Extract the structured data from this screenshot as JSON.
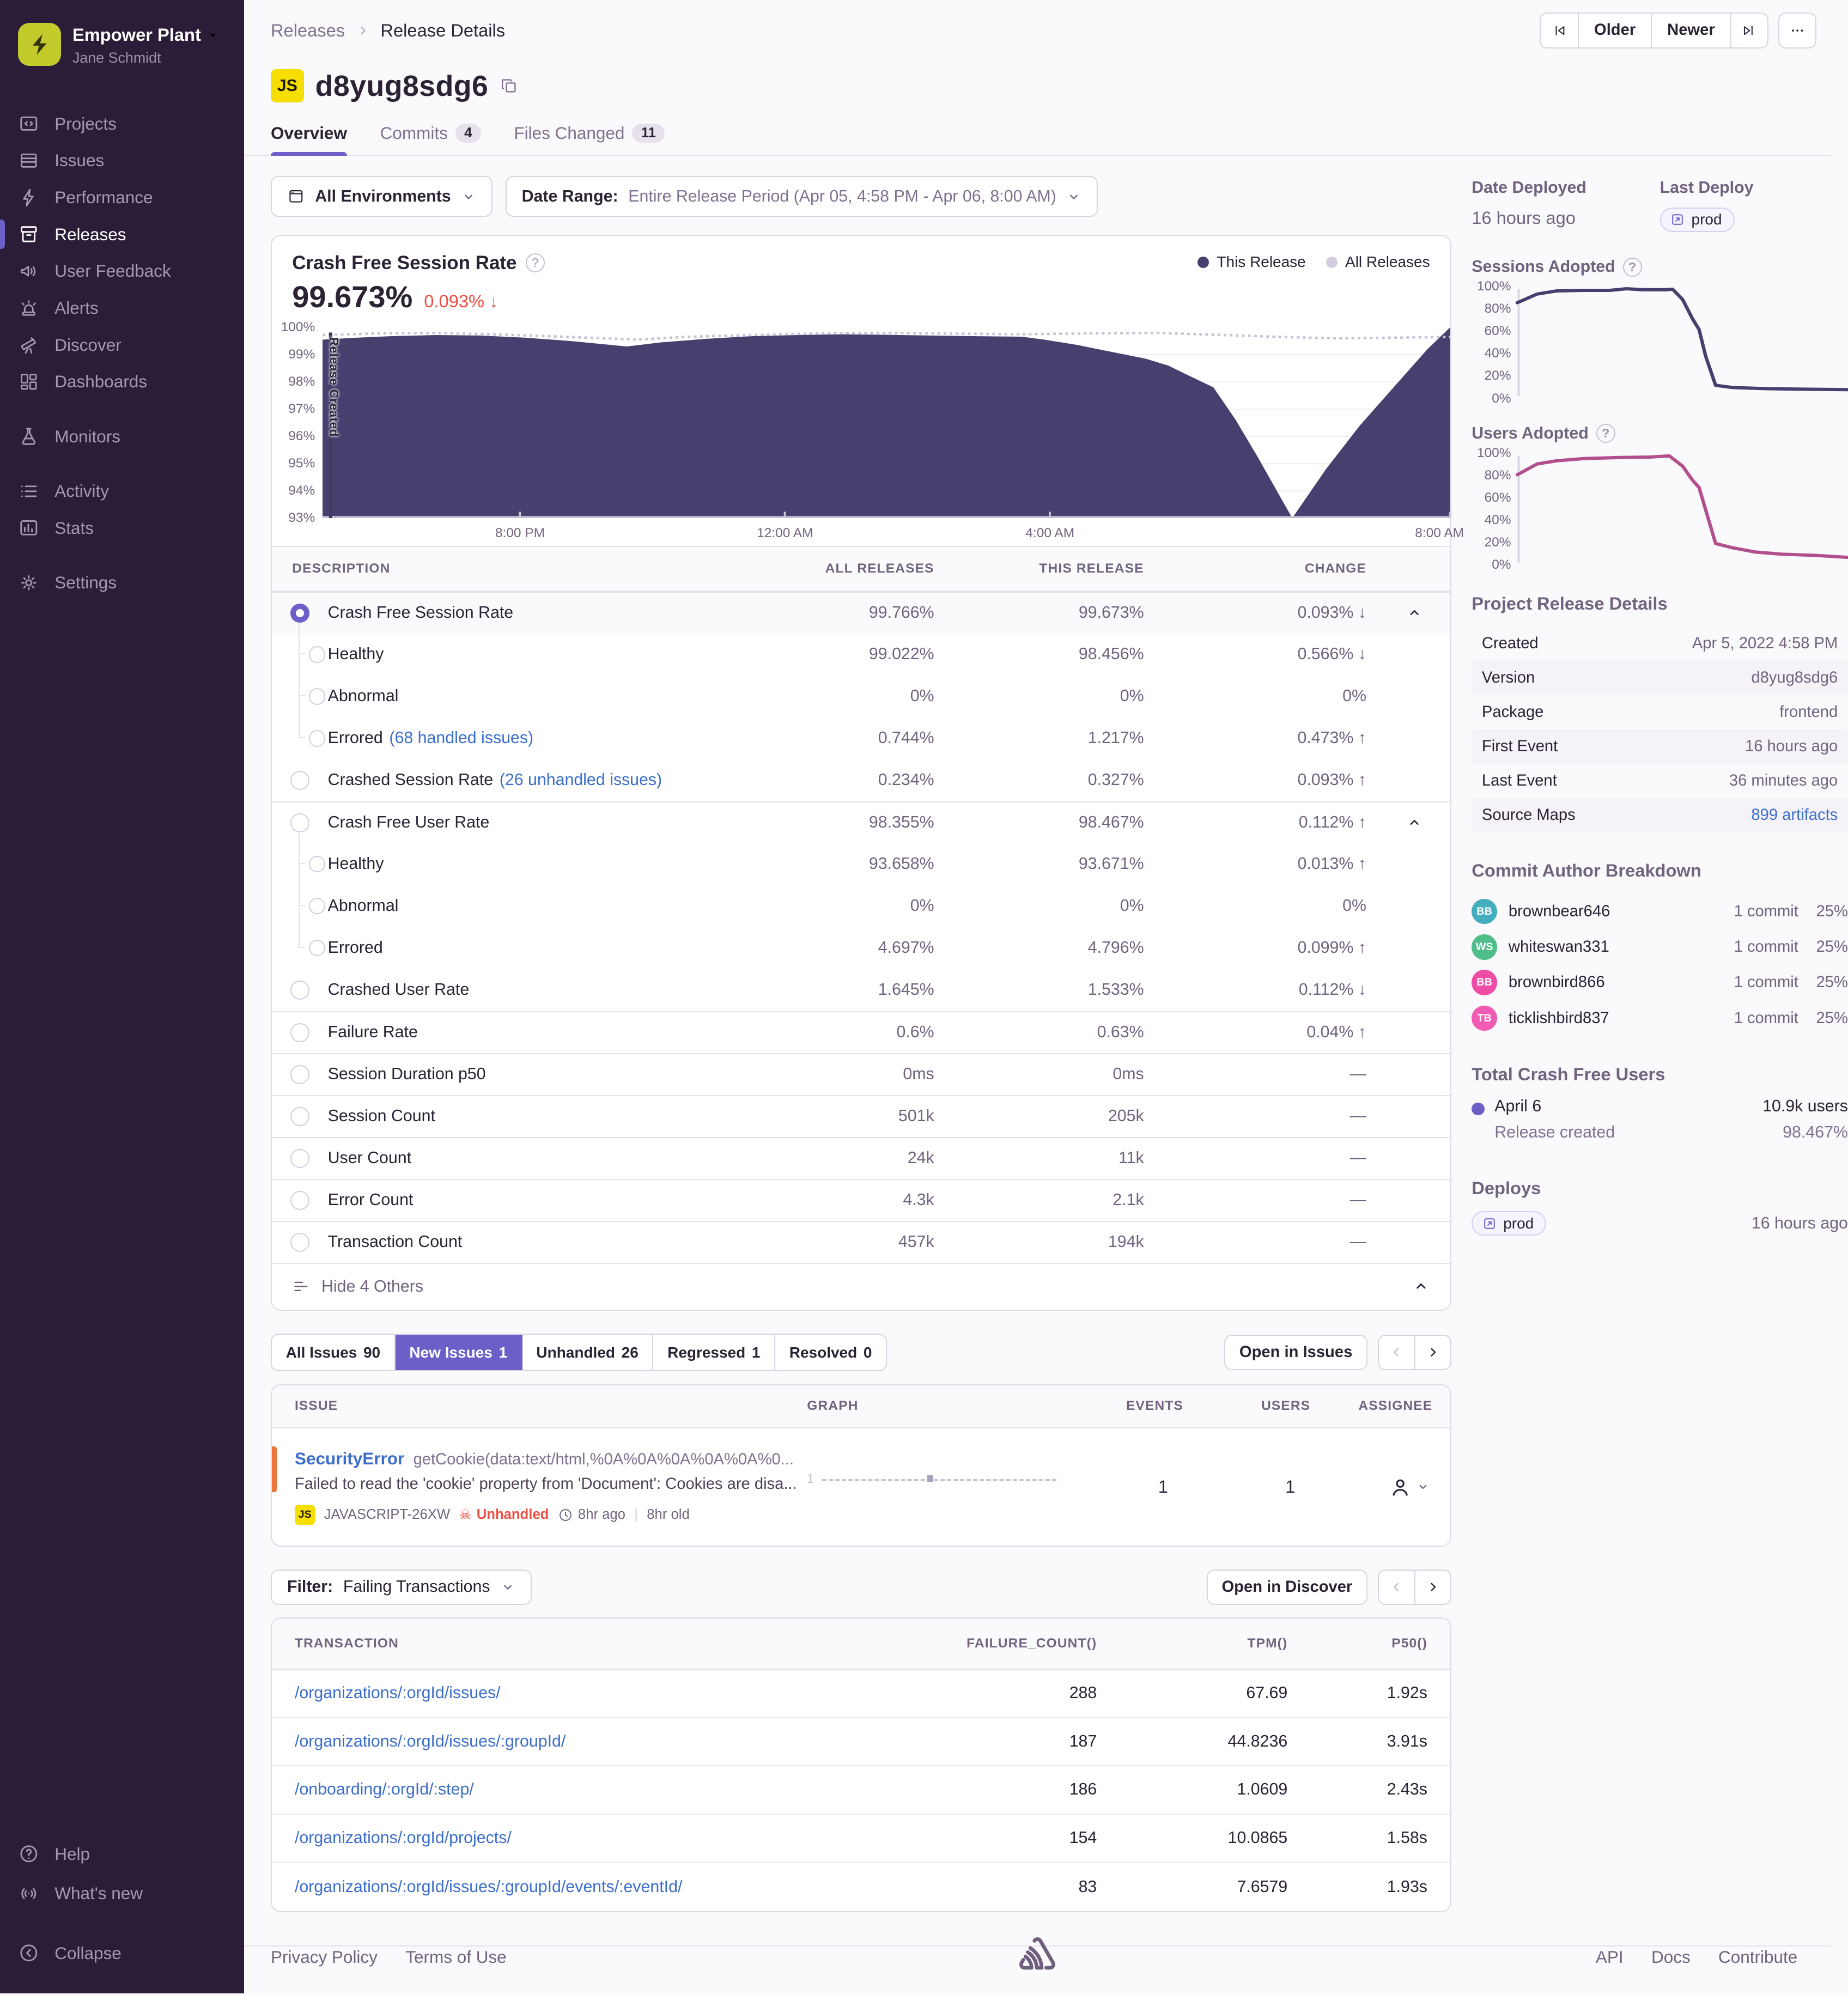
{
  "theme": {
    "accent": "#6C5FC7",
    "red": "#EF4E42",
    "green": "#27A083",
    "link_blue": "#3B6ECC",
    "chart_fill": "#46406E",
    "all_releases_line": "#C9C2D8",
    "users_line": "#B2508F",
    "sidebar_bg": "#2B1D38",
    "platform_yellow": "#F6DE00",
    "issue_bar_orange": "#EE7538"
  },
  "icons": {
    "skull": "☠"
  },
  "sidebar": {
    "org_name": "Empower Plant",
    "user_name": "Jane Schmidt",
    "groups": [
      {
        "items": [
          {
            "label": "Projects",
            "icon": "projects"
          },
          {
            "label": "Issues",
            "icon": "issues"
          },
          {
            "label": "Performance",
            "icon": "performance"
          },
          {
            "label": "Releases",
            "icon": "releases",
            "active": true
          },
          {
            "label": "User Feedback",
            "icon": "feedback"
          },
          {
            "label": "Alerts",
            "icon": "alerts"
          },
          {
            "label": "Discover",
            "icon": "discover"
          },
          {
            "label": "Dashboards",
            "icon": "dashboards"
          }
        ]
      },
      {
        "items": [
          {
            "label": "Monitors",
            "icon": "monitors"
          }
        ]
      },
      {
        "items": [
          {
            "label": "Activity",
            "icon": "activity"
          },
          {
            "label": "Stats",
            "icon": "stats"
          }
        ]
      },
      {
        "items": [
          {
            "label": "Settings",
            "icon": "settings"
          }
        ]
      }
    ],
    "footer_items": [
      {
        "label": "Help",
        "icon": "help"
      },
      {
        "label": "What's new",
        "icon": "whatsnew"
      },
      {
        "label": "Collapse",
        "icon": "collapse",
        "gap": true
      }
    ]
  },
  "header": {
    "breadcrumb": {
      "parent": "Releases",
      "current": "Release Details"
    },
    "older": "Older",
    "newer": "Newer",
    "platform": "JS",
    "title": "d8yug8sdg6",
    "tabs": [
      {
        "label": "Overview",
        "active": true
      },
      {
        "label": "Commits",
        "count": "4"
      },
      {
        "label": "Files Changed",
        "count": "11"
      }
    ]
  },
  "filters": {
    "environments": "All Environments",
    "date_label": "Date Range:",
    "date_value": "Entire Release Period (Apr 05, 4:58 PM - Apr 06, 8:00 AM)"
  },
  "charts": {
    "main": {
      "title": "Crash Free Session Rate",
      "value": "99.673%",
      "change": "0.093%",
      "change_dir": "down",
      "change_tone": "bad",
      "legend": [
        {
          "label": "This Release",
          "tone": "this"
        },
        {
          "label": "All Releases",
          "tone": "all"
        }
      ],
      "release_marker": "Release Created",
      "ylim": [
        93,
        100
      ],
      "y_ticks": [
        "100%",
        "99%",
        "98%",
        "97%",
        "96%",
        "95%",
        "94%",
        "93%"
      ],
      "x_ticks": [
        {
          "label": "8:00 PM",
          "pos": 17.5
        },
        {
          "label": "12:00 AM",
          "pos": 41
        },
        {
          "label": "4:00 AM",
          "pos": 64.5
        },
        {
          "label": "8:00 AM",
          "pos": 100
        }
      ],
      "this_release": [
        [
          0,
          99.55
        ],
        [
          0.03,
          99.62
        ],
        [
          0.06,
          99.68
        ],
        [
          0.1,
          99.72
        ],
        [
          0.14,
          99.7
        ],
        [
          0.18,
          99.62
        ],
        [
          0.22,
          99.5
        ],
        [
          0.25,
          99.38
        ],
        [
          0.27,
          99.3
        ],
        [
          0.3,
          99.45
        ],
        [
          0.34,
          99.58
        ],
        [
          0.38,
          99.68
        ],
        [
          0.42,
          99.72
        ],
        [
          0.46,
          99.75
        ],
        [
          0.5,
          99.73
        ],
        [
          0.54,
          99.7
        ],
        [
          0.58,
          99.68
        ],
        [
          0.62,
          99.66
        ],
        [
          0.64,
          99.55
        ],
        [
          0.67,
          99.35
        ],
        [
          0.7,
          99.1
        ],
        [
          0.73,
          98.85
        ],
        [
          0.75,
          98.6
        ],
        [
          0.77,
          98.2
        ],
        [
          0.79,
          97.8
        ],
        [
          0.81,
          96.6
        ],
        [
          0.83,
          95.2
        ],
        [
          0.86,
          93.0
        ],
        [
          0.89,
          94.8
        ],
        [
          0.92,
          96.4
        ],
        [
          0.95,
          97.8
        ],
        [
          0.98,
          99.2
        ],
        [
          1,
          100
        ]
      ],
      "all_releases": [
        [
          0,
          99.72
        ],
        [
          0.05,
          99.78
        ],
        [
          0.1,
          99.8
        ],
        [
          0.15,
          99.75
        ],
        [
          0.2,
          99.68
        ],
        [
          0.25,
          99.6
        ],
        [
          0.28,
          99.55
        ],
        [
          0.32,
          99.65
        ],
        [
          0.38,
          99.72
        ],
        [
          0.44,
          99.78
        ],
        [
          0.5,
          99.8
        ],
        [
          0.56,
          99.77
        ],
        [
          0.62,
          99.75
        ],
        [
          0.68,
          99.78
        ],
        [
          0.74,
          99.8
        ],
        [
          0.8,
          99.72
        ],
        [
          0.85,
          99.65
        ],
        [
          0.9,
          99.6
        ],
        [
          0.95,
          99.62
        ],
        [
          1,
          99.65
        ]
      ]
    },
    "adopt_y_ticks": [
      "100%",
      "80%",
      "60%",
      "40%",
      "20%",
      "0%"
    ],
    "sessions_adopted": [
      [
        0,
        85
      ],
      [
        0.06,
        93
      ],
      [
        0.12,
        96
      ],
      [
        0.2,
        96.5
      ],
      [
        0.28,
        96.5
      ],
      [
        0.33,
        98
      ],
      [
        0.38,
        97
      ],
      [
        0.45,
        97
      ],
      [
        0.47,
        97.5
      ],
      [
        0.5,
        88
      ],
      [
        0.53,
        70
      ],
      [
        0.55,
        60
      ],
      [
        0.57,
        35
      ],
      [
        0.6,
        8
      ],
      [
        0.65,
        6
      ],
      [
        0.75,
        5
      ],
      [
        0.85,
        4.5
      ],
      [
        1,
        4
      ]
    ],
    "users_adopted": [
      [
        0,
        80
      ],
      [
        0.06,
        90
      ],
      [
        0.12,
        93
      ],
      [
        0.2,
        95
      ],
      [
        0.3,
        96
      ],
      [
        0.4,
        96.5
      ],
      [
        0.46,
        97.5
      ],
      [
        0.5,
        88
      ],
      [
        0.53,
        75
      ],
      [
        0.55,
        68
      ],
      [
        0.6,
        16
      ],
      [
        0.65,
        12
      ],
      [
        0.72,
        8
      ],
      [
        0.8,
        6
      ],
      [
        0.9,
        5
      ],
      [
        1,
        3
      ]
    ]
  },
  "metrics": {
    "headers": [
      "DESCRIPTION",
      "ALL RELEASES",
      "THIS RELEASE",
      "CHANGE"
    ],
    "rows": [
      {
        "d": "Crash Free Session Rate",
        "all": "99.766%",
        "cur": "99.673%",
        "chg": "0.093%",
        "dir": "down",
        "tone": "bad",
        "sel": true,
        "exp": true,
        "sec": true
      },
      {
        "d": "Healthy",
        "lvl": "1",
        "all": "99.022%",
        "cur": "98.456%",
        "chg": "0.566%",
        "dir": "down",
        "tone": "bad"
      },
      {
        "d": "Abnormal",
        "lvl": "1",
        "all": "0%",
        "cur": "0%",
        "chg": "0%",
        "tone": "plain"
      },
      {
        "d": "Errored",
        "link": "(68 handled issues)",
        "lvl": "1",
        "last": true,
        "all": "0.744%",
        "cur": "1.217%",
        "chg": "0.473%",
        "dir": "up",
        "tone": "bad"
      },
      {
        "d": "Crashed Session Rate",
        "link": "(26 unhandled issues)",
        "all": "0.234%",
        "cur": "0.327%",
        "chg": "0.093%",
        "dir": "up",
        "tone": "bad"
      },
      {
        "d": "Crash Free User Rate",
        "exp": true,
        "sec": true,
        "all": "98.355%",
        "cur": "98.467%",
        "chg": "0.112%",
        "dir": "up",
        "tone": "good"
      },
      {
        "d": "Healthy",
        "lvl": "1",
        "all": "93.658%",
        "cur": "93.671%",
        "chg": "0.013%",
        "dir": "up",
        "tone": "good"
      },
      {
        "d": "Abnormal",
        "lvl": "1",
        "all": "0%",
        "cur": "0%",
        "chg": "0%",
        "tone": "plain"
      },
      {
        "d": "Errored",
        "lvl": "1",
        "last": true,
        "all": "4.697%",
        "cur": "4.796%",
        "chg": "0.099%",
        "dir": "up",
        "tone": "bad"
      },
      {
        "d": "Crashed User Rate",
        "all": "1.645%",
        "cur": "1.533%",
        "chg": "0.112%",
        "dir": "down",
        "tone": "good"
      },
      {
        "d": "Failure Rate",
        "sec": true,
        "all": "0.6%",
        "cur": "0.63%",
        "chg": "0.04%",
        "dir": "up",
        "tone": "bad"
      },
      {
        "d": "Session Duration p50",
        "sec": true,
        "all": "0ms",
        "cur": "0ms",
        "chg": "—",
        "tone": "muted"
      },
      {
        "d": "Session Count",
        "sec": true,
        "all": "501k",
        "cur": "205k",
        "chg": "—",
        "tone": "muted"
      },
      {
        "d": "User Count",
        "sec": true,
        "all": "24k",
        "cur": "11k",
        "chg": "—",
        "tone": "muted"
      },
      {
        "d": "Error Count",
        "sec": true,
        "all": "4.3k",
        "cur": "2.1k",
        "chg": "—",
        "tone": "muted"
      },
      {
        "d": "Transaction Count",
        "sec": true,
        "all": "457k",
        "cur": "194k",
        "chg": "—",
        "tone": "muted"
      }
    ],
    "hide_label": "Hide 4 Others"
  },
  "issues": {
    "tabs": [
      {
        "label": "All Issues",
        "count": "90"
      },
      {
        "label": "New Issues",
        "count": "1",
        "active": true
      },
      {
        "label": "Unhandled",
        "count": "26"
      },
      {
        "label": "Regressed",
        "count": "1"
      },
      {
        "label": "Resolved",
        "count": "0"
      }
    ],
    "open_label": "Open in Issues",
    "headers": [
      "ISSUE",
      "GRAPH",
      "EVENTS",
      "USERS",
      "ASSIGNEE"
    ],
    "row": {
      "type": "SecurityError",
      "culprit": "getCookie(data:text/html,%0A%0A%0A%0A%0A%0...",
      "message": "Failed to read the 'cookie' property from 'Document': Cookies are disa...",
      "platform": "JS",
      "short_id": "JAVASCRIPT-26XW",
      "unhandled": "Unhandled",
      "age": "8hr ago",
      "old": "8hr old",
      "graph_label": "1",
      "events": "1",
      "users": "1"
    }
  },
  "transactions": {
    "filter_label": "Filter:",
    "filter_value": "Failing Transactions",
    "open_label": "Open in Discover",
    "headers": [
      "TRANSACTION",
      "FAILURE_COUNT()",
      "TPM()",
      "P50()"
    ],
    "rows": [
      {
        "path": "/organizations/:orgId/issues/",
        "fc": "288",
        "tpm": "67.69",
        "p50": "1.92s"
      },
      {
        "path": "/organizations/:orgId/issues/:groupId/",
        "fc": "187",
        "tpm": "44.8236",
        "p50": "3.91s"
      },
      {
        "path": "/onboarding/:orgId/:step/",
        "fc": "186",
        "tpm": "1.0609",
        "p50": "2.43s"
      },
      {
        "path": "/organizations/:orgId/projects/",
        "fc": "154",
        "tpm": "10.0865",
        "p50": "1.58s"
      },
      {
        "path": "/organizations/:orgId/issues/:groupId/events/:eventId/",
        "fc": "83",
        "tpm": "7.6579",
        "p50": "1.93s"
      }
    ]
  },
  "rightpanel": {
    "date_deployed_label": "Date Deployed",
    "date_deployed_value": "16 hours ago",
    "last_deploy_label": "Last Deploy",
    "last_deploy_env": "prod",
    "sessions_adopted_label": "Sessions Adopted",
    "users_adopted_label": "Users Adopted",
    "details_title": "Project Release Details",
    "details": [
      {
        "label": "Created",
        "value": "Apr 5, 2022 4:58 PM"
      },
      {
        "label": "Version",
        "value": "d8yug8sdg6"
      },
      {
        "label": "Package",
        "value": "frontend"
      },
      {
        "label": "First Event",
        "value": "16 hours ago"
      },
      {
        "label": "Last Event",
        "value": "36 minutes ago"
      },
      {
        "label": "Source Maps",
        "value": "899 artifacts",
        "link": true
      }
    ],
    "authors_title": "Commit Author Breakdown",
    "authors": [
      {
        "init": "BB",
        "av": "teal",
        "name": "brownbear646",
        "commits": "1 commit",
        "pct": "25%"
      },
      {
        "init": "WS",
        "av": "green",
        "name": "whiteswan331",
        "commits": "1 commit",
        "pct": "25%"
      },
      {
        "init": "BB",
        "av": "pink1",
        "name": "brownbird866",
        "commits": "1 commit",
        "pct": "25%"
      },
      {
        "init": "TB",
        "av": "pink2",
        "name": "ticklishbird837",
        "commits": "1 commit",
        "pct": "25%"
      }
    ],
    "tcfu_title": "Total Crash Free Users",
    "tcfu_date": "April 6",
    "tcfu_users": "10.9k users",
    "tcfu_sub": "Release created",
    "tcfu_pct": "98.467%",
    "deploys_title": "Deploys",
    "deploy_env": "prod",
    "deploy_when": "16 hours ago"
  },
  "footer": {
    "left": [
      {
        "label": "Privacy Policy"
      },
      {
        "label": "Terms of Use"
      }
    ],
    "right": [
      {
        "label": "API"
      },
      {
        "label": "Docs"
      },
      {
        "label": "Contribute"
      }
    ]
  }
}
